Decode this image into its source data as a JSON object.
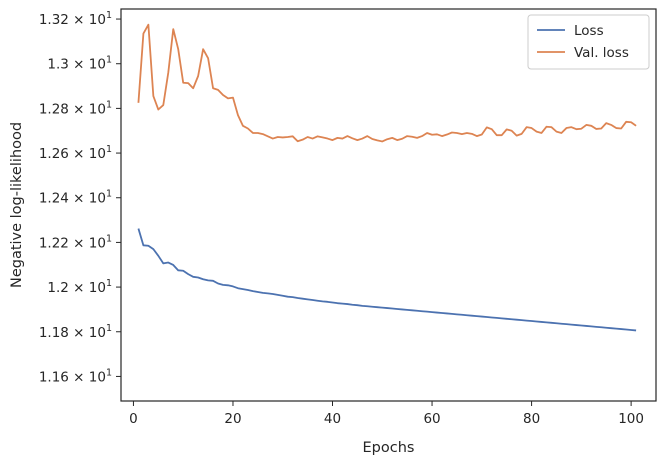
{
  "chart_data": {
    "type": "line",
    "xlabel": "Epochs",
    "ylabel": "Negative log-likelihood",
    "xlim": [
      -2.5,
      105
    ],
    "ylim": [
      11.49,
      13.245
    ],
    "x_ticks": [
      0,
      20,
      40,
      60,
      80,
      100
    ],
    "x_tick_labels": [
      "0",
      "20",
      "40",
      "60",
      "80",
      "100"
    ],
    "y_ticks": [
      11.6,
      11.8,
      12.0,
      12.2,
      12.4,
      12.6,
      12.8,
      13.0,
      13.2
    ],
    "y_tick_labels": [
      {
        "mantissa": "1.16",
        "base": "10",
        "exp": "1"
      },
      {
        "mantissa": "1.18",
        "base": "10",
        "exp": "1"
      },
      {
        "mantissa": "1.2",
        "base": "10",
        "exp": "1"
      },
      {
        "mantissa": "1.22",
        "base": "10",
        "exp": "1"
      },
      {
        "mantissa": "1.24",
        "base": "10",
        "exp": "1"
      },
      {
        "mantissa": "1.26",
        "base": "10",
        "exp": "1"
      },
      {
        "mantissa": "1.28",
        "base": "10",
        "exp": "1"
      },
      {
        "mantissa": "1.3",
        "base": "10",
        "exp": "1"
      },
      {
        "mantissa": "1.32",
        "base": "10",
        "exp": "1"
      }
    ],
    "times_sign": "×",
    "grid": false,
    "legend_position": "top-right",
    "series": [
      {
        "name": "Loss",
        "color": "#4c72b0",
        "x_start": 1,
        "x_step": 1,
        "values": [
          12.262,
          12.187,
          12.185,
          12.17,
          12.14,
          12.106,
          12.11,
          12.099,
          12.075,
          12.073,
          12.058,
          12.046,
          12.043,
          12.035,
          12.03,
          12.028,
          12.016,
          12.01,
          12.008,
          12.003,
          11.995,
          11.991,
          11.987,
          11.982,
          11.978,
          11.974,
          11.972,
          11.969,
          11.965,
          11.961,
          11.957,
          11.955,
          11.951,
          11.948,
          11.945,
          11.942,
          11.939,
          11.936,
          11.934,
          11.931,
          11.928,
          11.926,
          11.924,
          11.921,
          11.919,
          11.916,
          11.914,
          11.912,
          11.91,
          11.908,
          11.906,
          11.904,
          11.902,
          11.9,
          11.898,
          11.896,
          11.894,
          11.892,
          11.89,
          11.888,
          11.886,
          11.884,
          11.882,
          11.88,
          11.878,
          11.876,
          11.874,
          11.872,
          11.87,
          11.868,
          11.866,
          11.864,
          11.862,
          11.86,
          11.858,
          11.856,
          11.854,
          11.852,
          11.85,
          11.848,
          11.846,
          11.844,
          11.842,
          11.84,
          11.838,
          11.836,
          11.834,
          11.832,
          11.83,
          11.828,
          11.826,
          11.824,
          11.822,
          11.82,
          11.818,
          11.816,
          11.814,
          11.812,
          11.81,
          11.808,
          11.806
        ]
      },
      {
        "name": "Val. loss",
        "color": "#dd8452",
        "x_start": 1,
        "x_step": 1,
        "values": [
          12.825,
          13.135,
          13.175,
          12.855,
          12.795,
          12.815,
          12.96,
          13.155,
          13.065,
          12.915,
          12.913,
          12.89,
          12.945,
          13.065,
          13.025,
          12.89,
          12.883,
          12.86,
          12.845,
          12.848,
          12.77,
          12.722,
          12.71,
          12.69,
          12.69,
          12.685,
          12.675,
          12.665,
          12.672,
          12.67,
          12.672,
          12.675,
          12.653,
          12.66,
          12.672,
          12.665,
          12.675,
          12.67,
          12.665,
          12.658,
          12.668,
          12.665,
          12.676,
          12.666,
          12.658,
          12.665,
          12.676,
          12.663,
          12.657,
          12.652,
          12.662,
          12.668,
          12.658,
          12.664,
          12.676,
          12.673,
          12.668,
          12.676,
          12.69,
          12.682,
          12.684,
          12.676,
          12.683,
          12.692,
          12.69,
          12.685,
          12.69,
          12.686,
          12.676,
          12.683,
          12.715,
          12.707,
          12.68,
          12.68,
          12.706,
          12.7,
          12.678,
          12.686,
          12.716,
          12.712,
          12.696,
          12.69,
          12.718,
          12.716,
          12.696,
          12.69,
          12.712,
          12.716,
          12.707,
          12.709,
          12.726,
          12.722,
          12.708,
          12.71,
          12.734,
          12.726,
          12.712,
          12.71,
          12.74,
          12.738,
          12.722
        ]
      }
    ]
  }
}
